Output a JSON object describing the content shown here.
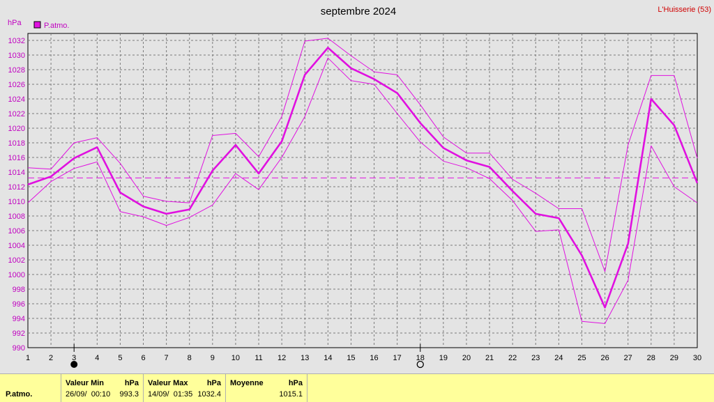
{
  "title": "septembre 2024",
  "station": "L'Huisserie (53)",
  "unit_label": "hPa",
  "legend_label": "P.atmo.",
  "colors": {
    "series": "#e010e0",
    "grid": "#7a7a7a",
    "axis_text": "#c000c0",
    "station_text": "#d00000",
    "background": "#e4e4e4",
    "panel": "#ffff9b"
  },
  "chart_data": {
    "type": "line",
    "title": "septembre 2024",
    "ylabel": "hPa",
    "ylim": [
      990,
      1033
    ],
    "yticks": [
      990,
      992,
      994,
      996,
      998,
      1000,
      1002,
      1004,
      1006,
      1008,
      1010,
      1012,
      1014,
      1016,
      1018,
      1020,
      1022,
      1024,
      1026,
      1028,
      1030,
      1032
    ],
    "x": [
      1,
      2,
      3,
      4,
      5,
      6,
      7,
      8,
      9,
      10,
      11,
      12,
      13,
      14,
      15,
      16,
      17,
      18,
      19,
      20,
      21,
      22,
      23,
      24,
      25,
      26,
      27,
      28,
      29,
      30
    ],
    "grid": true,
    "series": [
      {
        "name": "P.atmo.",
        "role": "mean",
        "values": [
          1012.3,
          1013.4,
          1015.9,
          1017.4,
          1011.2,
          1009.3,
          1008.3,
          1008.9,
          1014.2,
          1017.7,
          1013.8,
          1018.2,
          1027.3,
          1031.0,
          1028.2,
          1026.7,
          1024.8,
          1020.7,
          1017.3,
          1015.6,
          1014.7,
          1011.4,
          1008.3,
          1007.7,
          1002.6,
          995.5,
          1004.2,
          1024.0,
          1020.4,
          1012.5
        ]
      },
      {
        "role": "max",
        "values": [
          1014.6,
          1014.4,
          1018.0,
          1018.7,
          1015.2,
          1010.7,
          1010.0,
          1009.8,
          1019.0,
          1019.3,
          1016.1,
          1021.6,
          1031.9,
          1032.3,
          1029.9,
          1027.7,
          1027.3,
          1023.2,
          1018.8,
          1016.6,
          1016.6,
          1013.0,
          1011.1,
          1009.0,
          1009.0,
          1000.4,
          1017.7,
          1027.2,
          1027.2,
          1015.9
        ]
      },
      {
        "role": "min",
        "values": [
          1009.8,
          1012.7,
          1014.5,
          1015.4,
          1008.6,
          1007.9,
          1006.7,
          1007.8,
          1009.5,
          1013.8,
          1011.6,
          1016.0,
          1021.6,
          1029.6,
          1026.5,
          1026.0,
          1022.0,
          1018.1,
          1015.5,
          1014.6,
          1013.1,
          1010.1,
          1005.9,
          1006.1,
          993.6,
          993.3,
          999.2,
          1017.6,
          1012.0,
          1009.8
        ]
      }
    ],
    "mean_line": 1013.2,
    "markers": [
      {
        "x": 3,
        "symbol": "new-moon"
      },
      {
        "x": 18,
        "symbol": "full-moon"
      }
    ]
  },
  "stats_panel": {
    "row_label": "P.atmo.",
    "min": {
      "header": "Valeur Min",
      "unit": "hPa",
      "date": "26/09/  00:10",
      "value": "993.3"
    },
    "max": {
      "header": "Valeur Max",
      "unit": "hPa",
      "date": "14/09/  01:35",
      "value": "1032.4"
    },
    "avg": {
      "header": "Moyenne",
      "unit": "hPa",
      "value": "1015.1"
    }
  }
}
